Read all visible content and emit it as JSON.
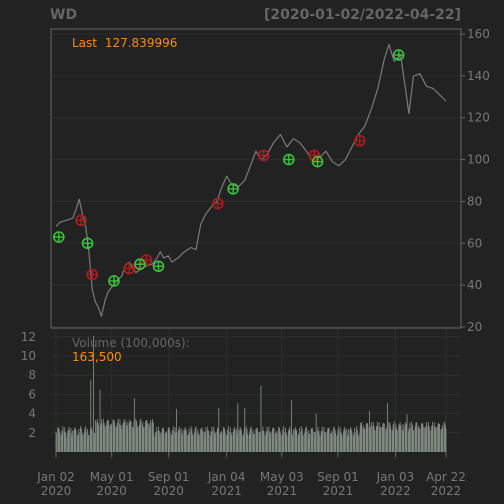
{
  "chart_data": {
    "type": "line",
    "symbol": "WD",
    "date_range": "[2020-01-02/2022-04-22]",
    "price_panel": {
      "last_label": "Last",
      "last_value": "127.839996",
      "ylim": [
        20,
        160
      ],
      "y_ticks": [
        20,
        40,
        60,
        80,
        100,
        120,
        140,
        160
      ],
      "grid": true,
      "series": [
        {
          "name": "Close",
          "color": "#7a7a7a",
          "points": [
            [
              "2020-01-02",
              68
            ],
            [
              "2020-01-10",
              70
            ],
            [
              "2020-01-24",
              71
            ],
            [
              "2020-02-07",
              72
            ],
            [
              "2020-02-14",
              76
            ],
            [
              "2020-02-21",
              81
            ],
            [
              "2020-02-28",
              74
            ],
            [
              "2020-03-06",
              68
            ],
            [
              "2020-03-13",
              56
            ],
            [
              "2020-03-20",
              38
            ],
            [
              "2020-03-27",
              32
            ],
            [
              "2020-04-03",
              29
            ],
            [
              "2020-04-09",
              25
            ],
            [
              "2020-04-17",
              33
            ],
            [
              "2020-04-24",
              37
            ],
            [
              "2020-05-01",
              39
            ],
            [
              "2020-05-08",
              41
            ],
            [
              "2020-05-15",
              43
            ],
            [
              "2020-05-22",
              44
            ],
            [
              "2020-06-01",
              50
            ],
            [
              "2020-06-08",
              51
            ],
            [
              "2020-06-15",
              48
            ],
            [
              "2020-06-22",
              46
            ],
            [
              "2020-06-29",
              47
            ],
            [
              "2020-07-13",
              49
            ],
            [
              "2020-07-27",
              50
            ],
            [
              "2020-08-07",
              53
            ],
            [
              "2020-08-14",
              56
            ],
            [
              "2020-08-21",
              53
            ],
            [
              "2020-08-31",
              54
            ],
            [
              "2020-09-08",
              51
            ],
            [
              "2020-09-21",
              53
            ],
            [
              "2020-10-05",
              56
            ],
            [
              "2020-10-19",
              58
            ],
            [
              "2020-10-30",
              57
            ],
            [
              "2020-11-09",
              69
            ],
            [
              "2020-11-20",
              74
            ],
            [
              "2020-12-04",
              78
            ],
            [
              "2020-12-14",
              80
            ],
            [
              "2020-12-23",
              86
            ],
            [
              "2021-01-04",
              92
            ],
            [
              "2021-01-15",
              88
            ],
            [
              "2021-01-29",
              87
            ],
            [
              "2021-02-12",
              90
            ],
            [
              "2021-02-26",
              98
            ],
            [
              "2021-03-08",
              104
            ],
            [
              "2021-03-19",
              100
            ],
            [
              "2021-03-31",
              102
            ],
            [
              "2021-04-15",
              108
            ],
            [
              "2021-04-30",
              112
            ],
            [
              "2021-05-14",
              106
            ],
            [
              "2021-05-28",
              110
            ],
            [
              "2021-06-11",
              108
            ],
            [
              "2021-06-25",
              104
            ],
            [
              "2021-07-09",
              99
            ],
            [
              "2021-07-23",
              101
            ],
            [
              "2021-08-06",
              104
            ],
            [
              "2021-08-20",
              99
            ],
            [
              "2021-09-03",
              97
            ],
            [
              "2021-09-17",
              100
            ],
            [
              "2021-10-01",
              106
            ],
            [
              "2021-10-15",
              112
            ],
            [
              "2021-10-29",
              116
            ],
            [
              "2021-11-12",
              124
            ],
            [
              "2021-11-26",
              134
            ],
            [
              "2021-12-10",
              148
            ],
            [
              "2021-12-20",
              155
            ],
            [
              "2021-12-31",
              147
            ],
            [
              "2022-01-14",
              150
            ],
            [
              "2022-01-25",
              133
            ],
            [
              "2022-02-01",
              122
            ],
            [
              "2022-02-11",
              140
            ],
            [
              "2022-02-25",
              141
            ],
            [
              "2022-03-11",
              135
            ],
            [
              "2022-03-25",
              134
            ],
            [
              "2022-04-08",
              131
            ],
            [
              "2022-04-22",
              128
            ]
          ]
        }
      ],
      "buy_signals": [
        [
          "2020-01-08",
          63
        ],
        [
          "2020-03-10",
          60
        ],
        [
          "2020-05-06",
          42
        ],
        [
          "2020-07-01",
          50
        ],
        [
          "2020-08-10",
          49
        ],
        [
          "2021-01-18",
          86
        ],
        [
          "2021-05-18",
          100
        ],
        [
          "2021-07-19",
          99
        ],
        [
          "2022-01-10",
          150
        ]
      ],
      "sell_signals": [
        [
          "2020-02-25",
          71
        ],
        [
          "2020-03-20",
          45
        ],
        [
          "2020-06-08",
          48
        ],
        [
          "2020-07-15",
          52
        ],
        [
          "2020-12-16",
          79
        ],
        [
          "2021-03-25",
          102
        ],
        [
          "2021-07-12",
          102
        ],
        [
          "2021-10-18",
          109
        ]
      ]
    },
    "volume_panel": {
      "label": "Volume (100,000s):",
      "last_value": "163,500",
      "ylim": [
        0,
        12.5
      ],
      "y_ticks": [
        2,
        4,
        6,
        8,
        10,
        12
      ],
      "spikes": [
        [
          "2020-03-17",
          7.5
        ],
        [
          "2020-03-23",
          12.1
        ],
        [
          "2020-04-06",
          6.5
        ],
        [
          "2020-06-19",
          5.6
        ],
        [
          "2020-09-18",
          4.5
        ],
        [
          "2020-12-18",
          4.6
        ],
        [
          "2021-01-28",
          5.1
        ],
        [
          "2021-02-12",
          4.6
        ],
        [
          "2021-03-19",
          6.9
        ],
        [
          "2021-05-24",
          5.4
        ],
        [
          "2021-07-16",
          4.0
        ],
        [
          "2021-11-08",
          4.3
        ],
        [
          "2021-12-17",
          5.1
        ],
        [
          "2022-01-28",
          3.9
        ]
      ],
      "color": "#808a80"
    },
    "x_ticks": [
      {
        "date": "2020-01-02",
        "line1": "Jan 02",
        "line2": "2020"
      },
      {
        "date": "2020-05-01",
        "line1": "May 01",
        "line2": "2020"
      },
      {
        "date": "2020-09-01",
        "line1": "Sep 01",
        "line2": "2020"
      },
      {
        "date": "2021-01-04",
        "line1": "Jan 04",
        "line2": "2021"
      },
      {
        "date": "2021-05-03",
        "line1": "May 03",
        "line2": "2021"
      },
      {
        "date": "2021-09-01",
        "line1": "Sep 01",
        "line2": "2021"
      },
      {
        "date": "2022-01-03",
        "line1": "Jan 03",
        "line2": "2022"
      },
      {
        "date": "2022-04-22",
        "line1": "Apr 22",
        "line2": "2022"
      }
    ],
    "colors": {
      "background": "#222222",
      "panel_border": "#666666",
      "grid": "#2e2e2e",
      "axis_text": "#777777",
      "title_text": "#666666",
      "accent": "#ff8c00",
      "buy": "#39c33b",
      "sell": "#b01c1c"
    }
  }
}
